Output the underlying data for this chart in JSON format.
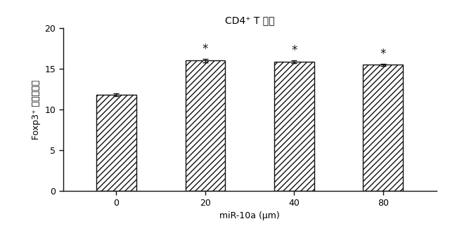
{
  "title": "CD4⁺ T 細胞",
  "categories": [
    "0",
    "20",
    "40",
    "80"
  ],
  "values": [
    11.8,
    16.0,
    15.85,
    15.5
  ],
  "errors": [
    0.2,
    0.2,
    0.15,
    0.12
  ],
  "xlabel": "miR-10a (μm)",
  "ylabel": "Foxp3⁺ 細胞（％）",
  "ylim": [
    0,
    20
  ],
  "yticks": [
    0,
    5,
    10,
    15,
    20
  ],
  "bar_color": "white",
  "bar_edgecolor": "#111111",
  "hatch": "////",
  "significance": [
    false,
    true,
    true,
    true
  ],
  "sig_marker": "*",
  "background_color": "#ffffff",
  "title_fontsize": 10,
  "label_fontsize": 9,
  "tick_fontsize": 9,
  "bar_width": 0.45
}
